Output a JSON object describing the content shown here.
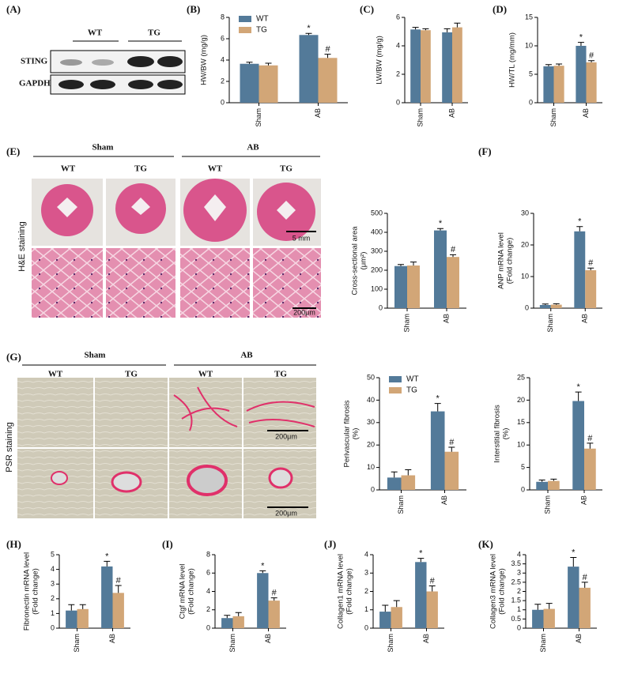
{
  "blot": {
    "panel": "(A)",
    "groups": [
      "WT",
      "TG"
    ],
    "rows": [
      "STING",
      "GAPDH"
    ]
  },
  "he": {
    "panel": "(E)",
    "groups": [
      "Sham",
      "AB"
    ],
    "columns": [
      "WT",
      "TG",
      "WT",
      "TG"
    ],
    "stain": "H&E staining",
    "scale_bars": [
      "5 mm",
      "200μm"
    ]
  },
  "psr": {
    "panel": "(G)",
    "groups": [
      "Sham",
      "AB"
    ],
    "columns": [
      "WT",
      "TG",
      "WT",
      "TG"
    ],
    "stain": "PSR staining",
    "scale_bars": [
      "200μm",
      "200μm"
    ]
  },
  "chart_data": [
    {
      "type": "bar",
      "panel": "(B)",
      "ylabel": [
        "HW/BW (mg/g)"
      ],
      "categories": [
        "Sham",
        "AB"
      ],
      "ylim": [
        0,
        8
      ],
      "yticks": [
        0,
        2,
        4,
        6,
        8
      ],
      "legend": "top-left",
      "series": [
        {
          "name": "WT",
          "color": "#537a99",
          "values": [
            3.65,
            6.35
          ],
          "errors": [
            0.15,
            0.15
          ],
          "markers": [
            null,
            "*"
          ]
        },
        {
          "name": "TG",
          "color": "#d2a677",
          "values": [
            3.5,
            4.2
          ],
          "errors": [
            0.2,
            0.35
          ],
          "markers": [
            null,
            "#"
          ]
        }
      ]
    },
    {
      "type": "bar",
      "panel": "(C)",
      "ylabel": [
        "LW/BW (mg/g)"
      ],
      "categories": [
        "Sham",
        "AB"
      ],
      "ylim": [
        0,
        6
      ],
      "yticks": [
        0,
        2,
        4,
        6
      ],
      "series": [
        {
          "name": "WT",
          "color": "#537a99",
          "values": [
            5.15,
            4.95
          ],
          "errors": [
            0.15,
            0.25
          ]
        },
        {
          "name": "TG",
          "color": "#d2a677",
          "values": [
            5.1,
            5.3
          ],
          "errors": [
            0.1,
            0.3
          ]
        }
      ]
    },
    {
      "type": "bar",
      "panel": "(D)",
      "ylabel": [
        "HW/TL (mg/mm)"
      ],
      "categories": [
        "Sham",
        "AB"
      ],
      "ylim": [
        0,
        15
      ],
      "yticks": [
        0,
        5,
        10,
        15
      ],
      "series": [
        {
          "name": "WT",
          "color": "#537a99",
          "values": [
            6.4,
            10.0
          ],
          "errors": [
            0.3,
            0.6
          ],
          "markers": [
            null,
            "*"
          ]
        },
        {
          "name": "TG",
          "color": "#d2a677",
          "values": [
            6.5,
            7.1
          ],
          "errors": [
            0.3,
            0.3
          ],
          "markers": [
            null,
            "#"
          ]
        }
      ]
    },
    {
      "type": "bar",
      "ylabel": [
        "Cross-sectional area",
        "(μm²)"
      ],
      "categories": [
        "Sham",
        "AB"
      ],
      "ylim": [
        0,
        500
      ],
      "yticks": [
        0,
        100,
        200,
        300,
        400,
        500
      ],
      "series": [
        {
          "name": "WT",
          "color": "#537a99",
          "values": [
            222,
            410
          ],
          "errors": [
            8,
            10
          ],
          "markers": [
            null,
            "*"
          ]
        },
        {
          "name": "TG",
          "color": "#d2a677",
          "values": [
            225,
            270
          ],
          "errors": [
            18,
            12
          ],
          "markers": [
            null,
            "#"
          ]
        }
      ]
    },
    {
      "type": "bar",
      "panel": "(F)",
      "ylabel": [
        "ANP mRNA level",
        "(Fold change)"
      ],
      "categories": [
        "Sham",
        "AB"
      ],
      "ylim": [
        0,
        30
      ],
      "yticks": [
        0,
        10,
        20,
        30
      ],
      "series": [
        {
          "name": "WT",
          "color": "#537a99",
          "values": [
            1.0,
            24.3
          ],
          "errors": [
            0.3,
            1.5
          ],
          "markers": [
            null,
            "*"
          ]
        },
        {
          "name": "TG",
          "color": "#d2a677",
          "values": [
            1.1,
            12.0
          ],
          "errors": [
            0.3,
            0.7
          ],
          "markers": [
            null,
            "#"
          ]
        }
      ]
    },
    {
      "type": "bar",
      "ylabel": [
        "Perivascular fibrosis",
        "(%)"
      ],
      "categories": [
        "Sham",
        "AB"
      ],
      "ylim": [
        0,
        50
      ],
      "yticks": [
        0,
        10,
        20,
        30,
        40,
        50
      ],
      "legend": "top-left",
      "series": [
        {
          "name": "WT",
          "color": "#537a99",
          "values": [
            5.5,
            35
          ],
          "errors": [
            2.5,
            3.5
          ],
          "markers": [
            null,
            "*"
          ]
        },
        {
          "name": "TG",
          "color": "#d2a677",
          "values": [
            6.5,
            17
          ],
          "errors": [
            2.5,
            2
          ],
          "markers": [
            null,
            "#"
          ]
        }
      ]
    },
    {
      "type": "bar",
      "ylabel": [
        "Interstitial fibrosis",
        "(%)"
      ],
      "categories": [
        "Sham",
        "AB"
      ],
      "ylim": [
        0,
        25
      ],
      "yticks": [
        0,
        5,
        10,
        15,
        20,
        25
      ],
      "series": [
        {
          "name": "WT",
          "color": "#537a99",
          "values": [
            1.8,
            19.8
          ],
          "errors": [
            0.4,
            2
          ],
          "markers": [
            null,
            "*"
          ]
        },
        {
          "name": "TG",
          "color": "#d2a677",
          "values": [
            2.0,
            9.2
          ],
          "errors": [
            0.4,
            1.2
          ],
          "markers": [
            null,
            "#"
          ]
        }
      ]
    },
    {
      "type": "bar",
      "panel": "(H)",
      "ylabel": [
        "Fibronectin mRNA level",
        "(Fold change)"
      ],
      "categories": [
        "Sham",
        "AB"
      ],
      "ylim": [
        0,
        5
      ],
      "yticks": [
        0,
        1,
        2,
        3,
        4,
        5
      ],
      "series": [
        {
          "name": "WT",
          "color": "#537a99",
          "values": [
            1.2,
            4.2
          ],
          "errors": [
            0.4,
            0.35
          ],
          "markers": [
            null,
            "*"
          ]
        },
        {
          "name": "TG",
          "color": "#d2a677",
          "values": [
            1.3,
            2.4
          ],
          "errors": [
            0.3,
            0.5
          ],
          "markers": [
            null,
            "#"
          ]
        }
      ]
    },
    {
      "type": "bar",
      "panel": "(I)",
      "ylabel": [
        "Ctgf mRNA level",
        "(Fold change)"
      ],
      "categories": [
        "Sham",
        "AB"
      ],
      "ylim": [
        0,
        8
      ],
      "yticks": [
        0,
        2,
        4,
        6,
        8
      ],
      "series": [
        {
          "name": "WT",
          "color": "#537a99",
          "values": [
            1.1,
            6.0
          ],
          "errors": [
            0.3,
            0.25
          ],
          "markers": [
            null,
            "*"
          ]
        },
        {
          "name": "TG",
          "color": "#d2a677",
          "values": [
            1.3,
            3.0
          ],
          "errors": [
            0.4,
            0.3
          ],
          "markers": [
            null,
            "#"
          ]
        }
      ]
    },
    {
      "type": "bar",
      "panel": "(J)",
      "ylabel": [
        "Collagen1 mRNA level",
        "(Fold change)"
      ],
      "categories": [
        "Sham",
        "AB"
      ],
      "ylim": [
        0,
        4
      ],
      "yticks": [
        0,
        1,
        2,
        3,
        4
      ],
      "series": [
        {
          "name": "WT",
          "color": "#537a99",
          "values": [
            0.9,
            3.6
          ],
          "errors": [
            0.35,
            0.2
          ],
          "markers": [
            null,
            "*"
          ]
        },
        {
          "name": "TG",
          "color": "#d2a677",
          "values": [
            1.15,
            2.0
          ],
          "errors": [
            0.35,
            0.3
          ],
          "markers": [
            null,
            "#"
          ]
        }
      ]
    },
    {
      "type": "bar",
      "panel": "(K)",
      "ylabel": [
        "Collagen3 mRNA level",
        "(Fold change)"
      ],
      "categories": [
        "Sham",
        "AB"
      ],
      "ylim": [
        0,
        4
      ],
      "yticks": [
        0,
        0.5,
        1,
        1.5,
        2,
        2.5,
        3,
        3.5,
        4
      ],
      "series": [
        {
          "name": "WT",
          "color": "#537a99",
          "values": [
            1.0,
            3.35
          ],
          "errors": [
            0.3,
            0.5
          ],
          "markers": [
            null,
            "*"
          ]
        },
        {
          "name": "TG",
          "color": "#d2a677",
          "values": [
            1.05,
            2.2
          ],
          "errors": [
            0.3,
            0.3
          ],
          "markers": [
            null,
            "#"
          ]
        }
      ]
    }
  ]
}
